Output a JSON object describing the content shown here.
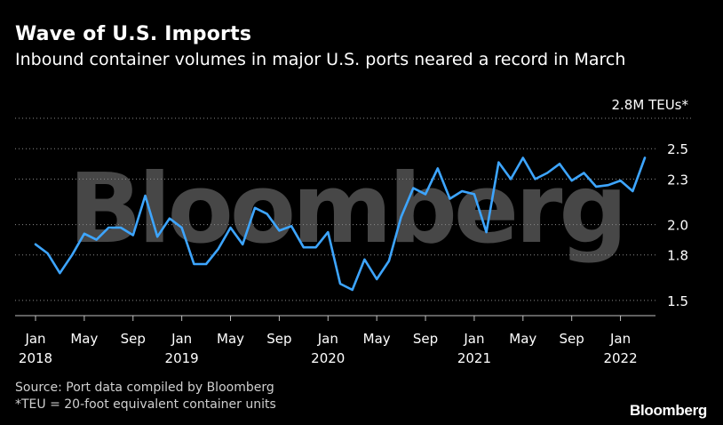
{
  "title": "Wave of U.S. Imports",
  "subtitle": "Inbound container volumes in major U.S. ports neared a record in March",
  "source": "Source: Port data compiled by Bloomberg",
  "footnote": "*TEU = 20-foot equivalent container units",
  "brand": "Bloomberg",
  "watermark": "Bloomberg",
  "colors": {
    "line": "#3da5ff",
    "grid": "#8a8a8a",
    "background": "#000000",
    "text": "#ffffff"
  },
  "chart_data": {
    "type": "line",
    "title": "Wave of U.S. Imports",
    "subtitle": "Inbound container volumes in major U.S. ports neared a record in March",
    "ylabel": "2.8M TEUs*",
    "unit": "M TEUs",
    "ylim": [
      1.4,
      2.8
    ],
    "yticks": [
      1.5,
      1.8,
      2.0,
      2.3,
      2.5
    ],
    "ytick_labels": [
      "1.5",
      "1.8",
      "2.0",
      "2.3",
      "2.5"
    ],
    "grid": true,
    "xticks": [
      {
        "month": "Jan",
        "year": "2018"
      },
      {
        "month": "May",
        "year": ""
      },
      {
        "month": "Sep",
        "year": ""
      },
      {
        "month": "Jan",
        "year": "2019"
      },
      {
        "month": "May",
        "year": ""
      },
      {
        "month": "Sep",
        "year": ""
      },
      {
        "month": "Jan",
        "year": "2020"
      },
      {
        "month": "May",
        "year": ""
      },
      {
        "month": "Sep",
        "year": ""
      },
      {
        "month": "Jan",
        "year": "2021"
      },
      {
        "month": "May",
        "year": ""
      },
      {
        "month": "Sep",
        "year": ""
      },
      {
        "month": "Jan",
        "year": "2022"
      }
    ],
    "series": [
      {
        "x": [
          "2018-01",
          "2018-02",
          "2018-03",
          "2018-04",
          "2018-05",
          "2018-06",
          "2018-07",
          "2018-08",
          "2018-09",
          "2018-10",
          "2018-11",
          "2018-12",
          "2019-01",
          "2019-02",
          "2019-03",
          "2019-04",
          "2019-05",
          "2019-06",
          "2019-07",
          "2019-08",
          "2019-09",
          "2019-10",
          "2019-11",
          "2019-12",
          "2020-01",
          "2020-02",
          "2020-03",
          "2020-04",
          "2020-05",
          "2020-06",
          "2020-07",
          "2020-08",
          "2020-09",
          "2020-10",
          "2020-11",
          "2020-12",
          "2021-01",
          "2021-02",
          "2021-03",
          "2021-04",
          "2021-05",
          "2021-06",
          "2021-07",
          "2021-08",
          "2021-09",
          "2021-10",
          "2021-11",
          "2021-12",
          "2022-01",
          "2022-02",
          "2022-03"
        ],
        "values": [
          1.87,
          1.81,
          1.68,
          1.8,
          1.94,
          1.9,
          1.98,
          1.98,
          1.93,
          2.19,
          1.92,
          2.04,
          1.98,
          1.74,
          1.74,
          1.84,
          1.98,
          1.87,
          2.11,
          2.07,
          1.96,
          1.99,
          1.85,
          1.85,
          1.95,
          1.61,
          1.57,
          1.77,
          1.64,
          1.76,
          2.05,
          2.24,
          2.2,
          2.37,
          2.17,
          2.22,
          2.2,
          1.95,
          2.41,
          2.3,
          2.44,
          2.3,
          2.34,
          2.4,
          2.29,
          2.34,
          2.25,
          2.26,
          2.29,
          2.22,
          2.44
        ]
      }
    ]
  }
}
